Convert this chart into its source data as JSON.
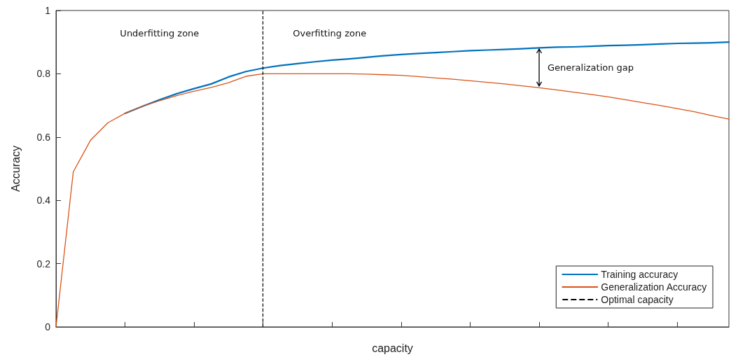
{
  "chart_data": {
    "type": "line",
    "xlabel": "capacity",
    "ylabel": "Accuracy",
    "categories": [
      null,
      null,
      null,
      null,
      null,
      null,
      null,
      null,
      null,
      null,
      null,
      null,
      null,
      null,
      null,
      null,
      null,
      null,
      null,
      null,
      null,
      null,
      null,
      null,
      null,
      null,
      null,
      null,
      null,
      null,
      null,
      null,
      null,
      null,
      null,
      null,
      null,
      null,
      null,
      null
    ],
    "ylim": [
      0,
      1
    ],
    "yticks": [
      0,
      0.2,
      0.4,
      0.6,
      0.8,
      1
    ],
    "series": [
      {
        "name": "Training accuracy",
        "color": "#0072bd",
        "values": [
          null,
          null,
          null,
          null,
          0.675,
          0.697,
          0.718,
          0.737,
          0.753,
          0.768,
          0.79,
          0.807,
          0.818,
          0.826,
          0.832,
          0.838,
          0.843,
          0.847,
          0.852,
          0.857,
          0.861,
          0.864,
          0.867,
          0.87,
          0.873,
          0.875,
          0.877,
          0.879,
          0.882,
          0.884,
          0.885,
          0.887,
          0.889,
          0.89,
          0.892,
          0.894,
          0.896,
          0.897,
          0.898,
          0.9
        ]
      },
      {
        "name": "Generalization Accuracy",
        "color": "#d95319",
        "values": [
          0,
          0.49,
          0.59,
          0.645,
          0.675,
          0.697,
          0.715,
          0.731,
          0.745,
          0.757,
          0.772,
          0.792,
          0.8,
          0.8,
          0.8,
          0.8,
          0.8,
          0.8,
          0.799,
          0.797,
          0.795,
          0.791,
          0.787,
          0.783,
          0.778,
          0.773,
          0.768,
          0.762,
          0.756,
          0.749,
          0.742,
          0.735,
          0.727,
          0.718,
          0.709,
          0.7,
          0.69,
          0.68,
          0.668,
          0.657
        ]
      }
    ],
    "ref_lines": [
      {
        "axis": "x",
        "label": "Optimal capacity",
        "color": "#000000",
        "line_style": "dashed"
      }
    ],
    "annotations": [
      "Underfitting zone",
      "Overfitting zone",
      "Generalization gap"
    ],
    "legend": "bottom right",
    "grid": false,
    "line_style": "solid",
    "marker": "none"
  }
}
